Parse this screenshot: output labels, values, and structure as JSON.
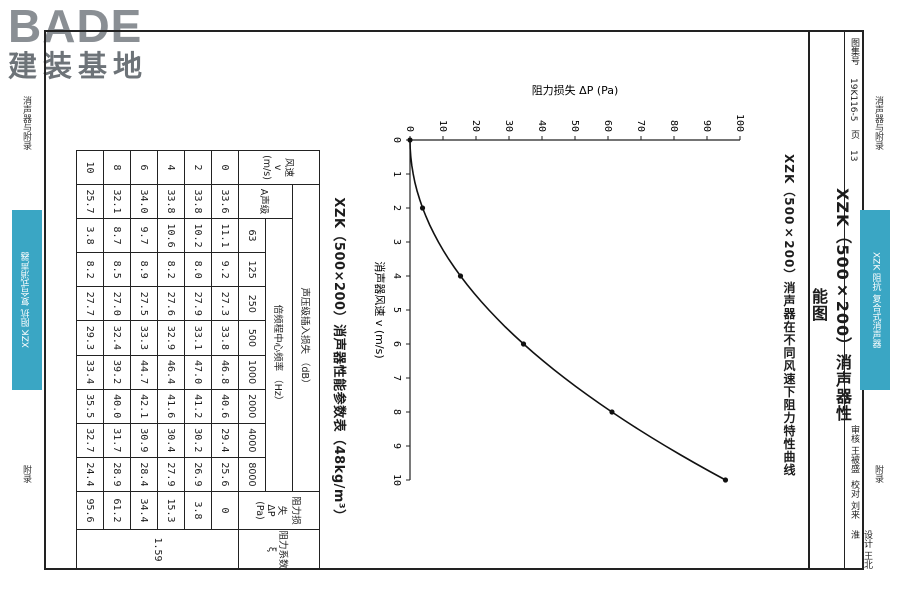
{
  "logo": {
    "word": "BADE",
    "cn": "建装基地"
  },
  "side": {
    "left_top": "消声器与附录",
    "left_bottom": "附录",
    "right_top": "消声器与附录",
    "right_bottom": "附录",
    "tab_left": "XZK 阻抗 复合式消声器",
    "tab_right": "XZK 阻抗 复合式消声器"
  },
  "table": {
    "title": "XZK（500×200）消声器性能参数表（48kg/m³）",
    "h_speed": "风速",
    "h_speed_sym": "v",
    "h_speed_unit": "(m/s)",
    "h_insertion": "声压级插入损失 （dB）",
    "h_aweighted": "A声级",
    "h_octave": "倍频程中心频率 （Hz）",
    "h_loss": "阻力损失",
    "h_loss_sym": "ΔP",
    "h_loss_unit": "(Pa)",
    "h_coef": "阻力系数",
    "h_coef_sym": "ξ",
    "freqs": [
      "63",
      "125",
      "250",
      "500",
      "1000",
      "2000",
      "4000",
      "8000"
    ],
    "coef_value": "1.59",
    "rows": [
      [
        "0",
        "33.6",
        "11.1",
        "9.2",
        "27.3",
        "33.8",
        "46.8",
        "40.6",
        "29.4",
        "25.6",
        "0"
      ],
      [
        "2",
        "33.8",
        "10.2",
        "8.0",
        "27.9",
        "33.1",
        "47.0",
        "41.2",
        "30.2",
        "26.9",
        "3.8"
      ],
      [
        "4",
        "33.8",
        "10.6",
        "8.2",
        "27.6",
        "32.9",
        "46.4",
        "41.6",
        "30.4",
        "27.9",
        "15.3"
      ],
      [
        "6",
        "34.0",
        "9.7",
        "8.9",
        "27.5",
        "33.3",
        "44.7",
        "42.1",
        "30.9",
        "28.4",
        "34.4"
      ],
      [
        "8",
        "32.1",
        "8.7",
        "8.5",
        "27.0",
        "32.4",
        "39.2",
        "40.0",
        "31.7",
        "28.9",
        "61.2"
      ],
      [
        "10",
        "25.7",
        "3.8",
        "8.2",
        "27.7",
        "29.3",
        "33.4",
        "35.5",
        "32.7",
        "24.4",
        "95.6"
      ]
    ]
  },
  "chart_data": {
    "type": "line",
    "title": "XZK（500×200）消声器在不同风速下阻力特性曲线",
    "xlabel": "消声器风速 v (m/s)",
    "ylabel": "阻力损失 ΔP (Pa)",
    "xlim": [
      0,
      10
    ],
    "ylim": [
      0,
      100
    ],
    "x_ticks": [
      "0",
      "1",
      "2",
      "3",
      "4",
      "5",
      "6",
      "7",
      "8",
      "9",
      "10"
    ],
    "y_ticks": [
      "0",
      "10",
      "20",
      "30",
      "40",
      "50",
      "60",
      "70",
      "80",
      "90",
      "100"
    ],
    "series": [
      {
        "x": [
          0,
          2,
          4,
          6,
          8,
          10
        ],
        "y": [
          0,
          3.8,
          15.3,
          34.4,
          61.2,
          95.6
        ]
      }
    ]
  },
  "title_block": {
    "main": "XZK（500×200）消声器性能图",
    "atlas_label": "图集号",
    "atlas_no": "19K116-5",
    "page_label": "页",
    "page_no": "13",
    "review": "审核 王被盛",
    "check": "校对 刘来",
    "design": "设计 王北淮"
  }
}
